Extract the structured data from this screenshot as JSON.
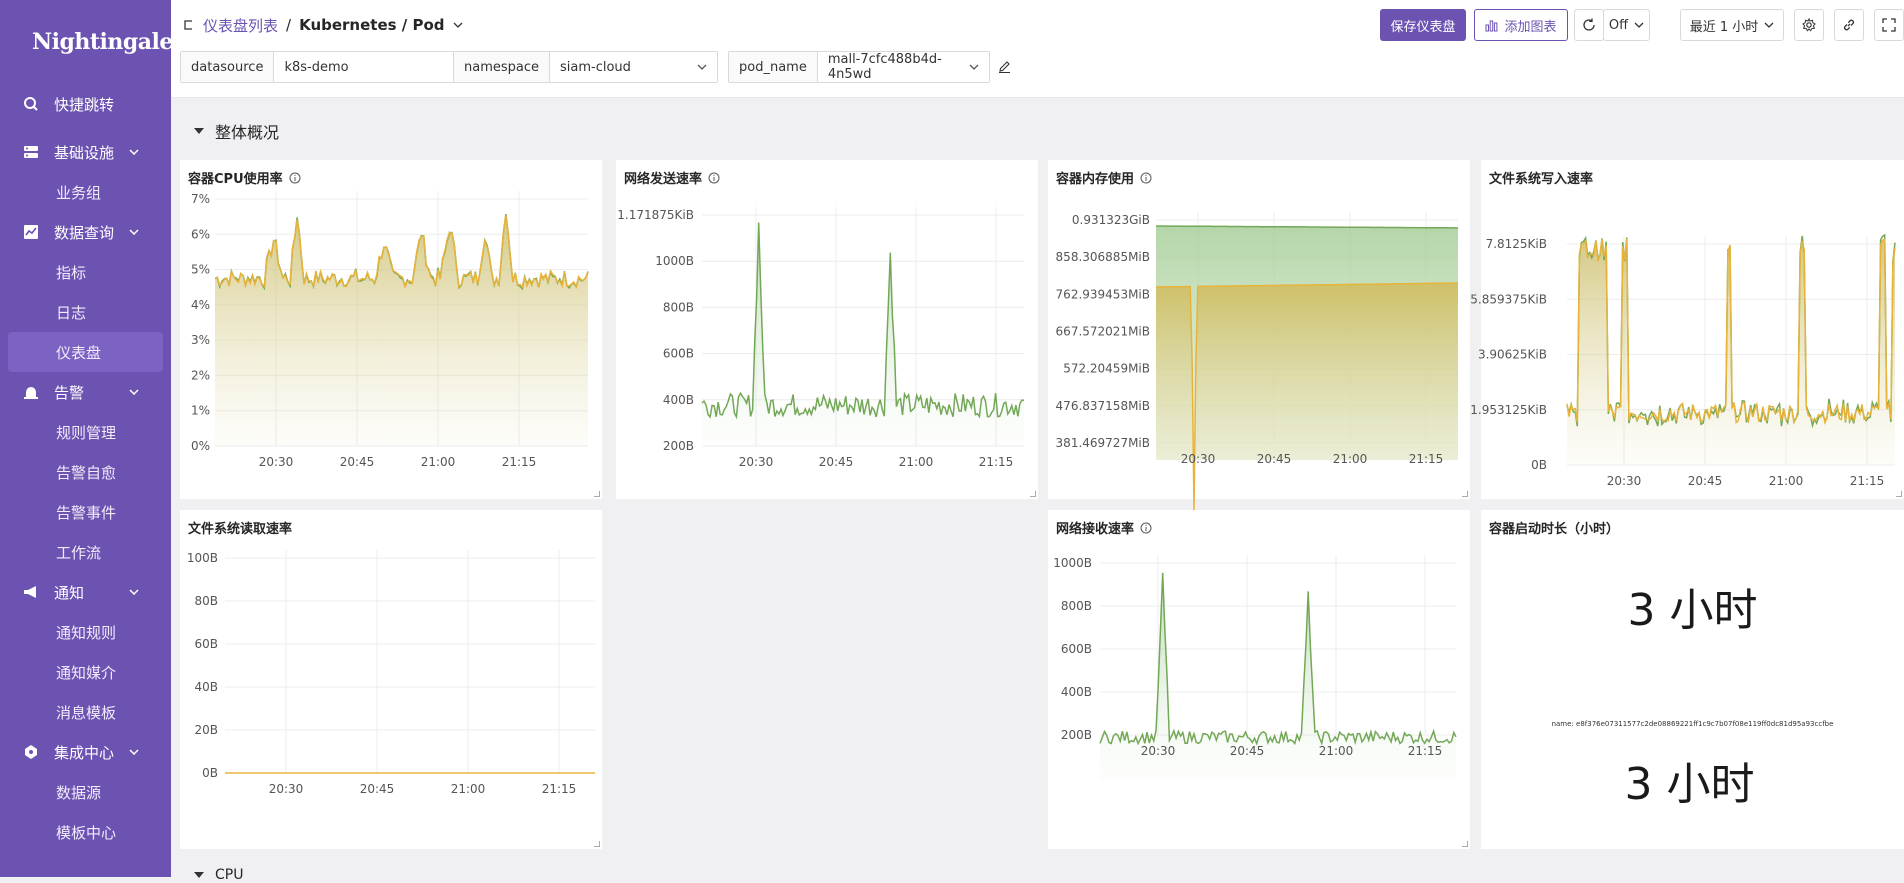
{
  "app": {
    "brand": "Nightingale",
    "accent": "#6c53b1"
  },
  "sidebar": {
    "items": [
      {
        "label": "快捷跳转",
        "icon": "search-icon"
      },
      {
        "label": "基础设施",
        "icon": "server-icon"
      },
      {
        "label": "业务组"
      },
      {
        "label": "数据查询",
        "icon": "chart-icon"
      },
      {
        "label": "指标"
      },
      {
        "label": "日志"
      },
      {
        "label": "仪表盘"
      },
      {
        "label": "告警",
        "icon": "alarm-icon"
      },
      {
        "label": "规则管理"
      },
      {
        "label": "告警自愈"
      },
      {
        "label": "告警事件"
      },
      {
        "label": "工作流"
      },
      {
        "label": "通知",
        "icon": "megaphone-icon"
      },
      {
        "label": "通知规则"
      },
      {
        "label": "通知媒介"
      },
      {
        "label": "消息模板"
      },
      {
        "label": "集成中心",
        "icon": "puzzle-icon"
      },
      {
        "label": "数据源"
      },
      {
        "label": "模板中心"
      }
    ]
  },
  "header": {
    "crumb_link": "仪表盘列表",
    "crumb_sep": "/",
    "crumb_current": "Kubernetes / Pod",
    "save_label": "保存仪表盘",
    "add_chart_label": "添加图表",
    "refresh_value": "Off",
    "time_range": "最近 1 小时"
  },
  "variables": [
    {
      "label": "datasource",
      "value": "k8s-demo"
    },
    {
      "label": "namespace",
      "value": "siam-cloud"
    },
    {
      "label": "pod_name",
      "value": "mall-7cfc488b4d-4n5wd"
    }
  ],
  "row_title": "整体概况",
  "next_row_title": "CPU",
  "panels": {
    "cpu": {
      "title": "容器CPU使用率",
      "yticks": [
        "7%",
        "6%",
        "5%",
        "4%",
        "3%",
        "2%",
        "1%",
        "0%"
      ],
      "xticks": [
        "20:30",
        "20:45",
        "21:00",
        "21:15"
      ]
    },
    "net_tx": {
      "title": "网络发送速率",
      "yticks": [
        "1.171875KiB",
        "1000B",
        "800B",
        "600B",
        "400B",
        "200B"
      ],
      "xticks": [
        "20:30",
        "20:45",
        "21:00",
        "21:15"
      ]
    },
    "mem": {
      "title": "容器内存使用",
      "yticks": [
        "0.931323GiB",
        "858.306885MiB",
        "762.939453MiB",
        "667.572021MiB",
        "572.20459MiB",
        "476.837158MiB",
        "381.469727MiB"
      ],
      "xticks": [
        "20:30",
        "20:45",
        "21:00",
        "21:15"
      ]
    },
    "fs_write": {
      "title": "文件系统写入速率",
      "yticks": [
        "7.8125KiB",
        "5.859375KiB",
        "3.90625KiB",
        "1.953125KiB",
        "0B"
      ],
      "xticks": [
        "20:30",
        "20:45",
        "21:00",
        "21:15"
      ]
    },
    "fs_read": {
      "title": "文件系统读取速率",
      "yticks": [
        "100B",
        "80B",
        "60B",
        "40B",
        "20B",
        "0B"
      ],
      "xticks": [
        "20:30",
        "20:45",
        "21:00",
        "21:15"
      ]
    },
    "net_rx": {
      "title": "网络接收速率",
      "yticks": [
        "1000B",
        "800B",
        "600B",
        "400B",
        "200B"
      ],
      "xticks": [
        "20:30",
        "20:45",
        "21:00",
        "21:15"
      ]
    },
    "uptime": {
      "title": "容器启动时长（小时）",
      "value_top": "3 小时",
      "series_name": "name: e8f376e07311577c2de08869221ff1c9c7b07f08e119ff0dc81d95a93ccfbe",
      "value_bottom": "3 小时"
    }
  },
  "colors": {
    "green": "#73a857",
    "yellow": "#e8b33a"
  }
}
